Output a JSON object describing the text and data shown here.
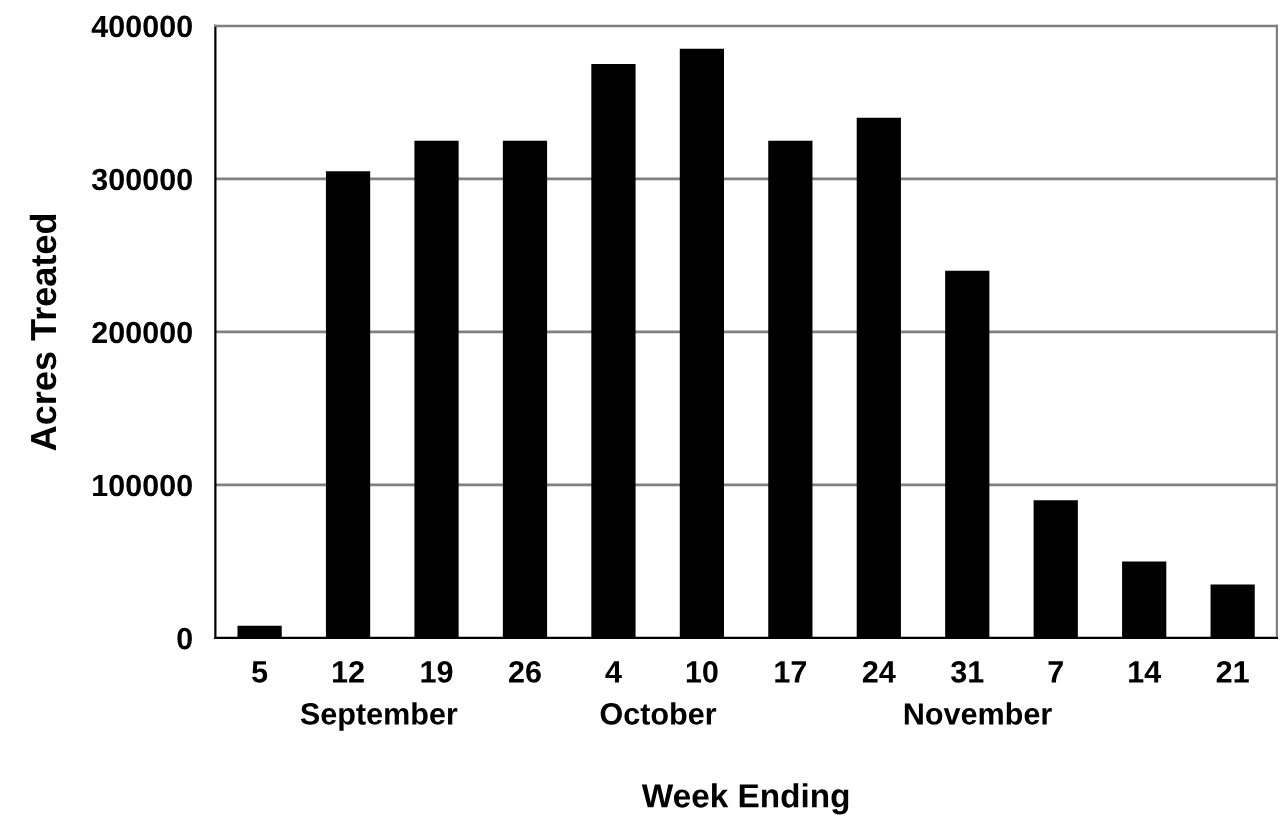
{
  "chart_data": {
    "type": "bar",
    "xlabel": "Week Ending",
    "ylabel": "Acres Treated",
    "categories": [
      "5",
      "12",
      "19",
      "26",
      "4",
      "10",
      "17",
      "24",
      "31",
      "7",
      "14",
      "21"
    ],
    "values": [
      8000,
      305000,
      325000,
      325000,
      375000,
      385000,
      325000,
      340000,
      240000,
      90000,
      50000,
      35000
    ],
    "color": "#000000",
    "ylim": [
      0,
      400000
    ],
    "yticks": [
      0,
      100000,
      200000,
      300000,
      400000
    ],
    "grid": "y",
    "annotations": [
      "September",
      "October",
      "November"
    ]
  }
}
